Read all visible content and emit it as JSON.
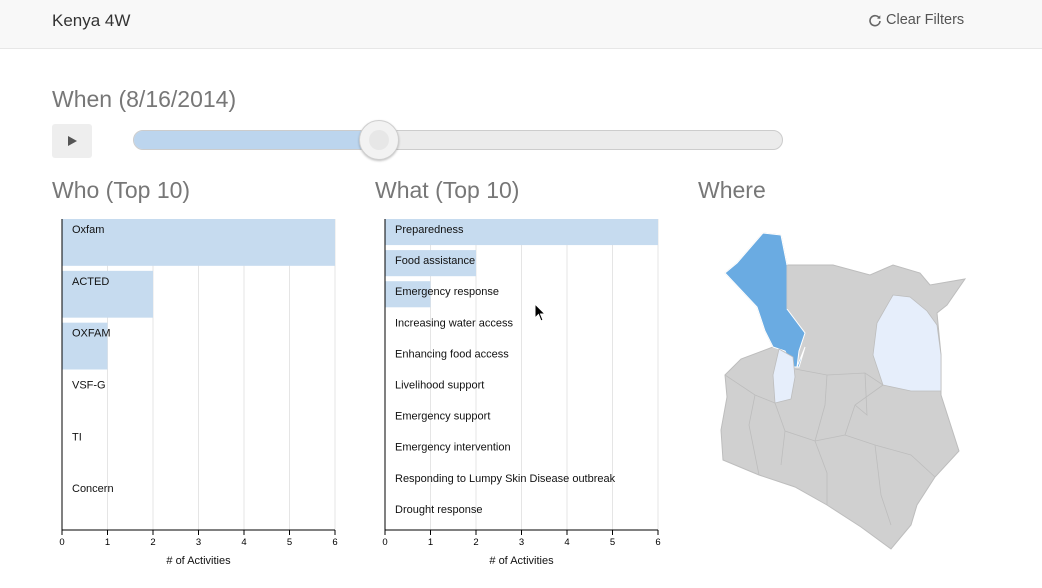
{
  "navbar": {
    "brand": "Kenya 4W",
    "clear_filters_label": "Clear Filters"
  },
  "when": {
    "title": "When (8/16/2014)",
    "slider_fraction": 0.38
  },
  "who": {
    "title": "Who (Top 10)",
    "chart_data": {
      "type": "bar",
      "orientation": "horizontal",
      "categories": [
        "Oxfam",
        "ACTED",
        "OXFAM",
        "VSF-G",
        "TI",
        "Concern"
      ],
      "values": [
        6,
        2,
        1,
        0,
        0,
        0
      ],
      "xlabel": "# of Activities",
      "xlim": [
        0,
        6
      ],
      "xticks": [
        "0",
        "1",
        "2",
        "3",
        "4",
        "5",
        "6"
      ],
      "grid": true,
      "bar_color": "#c6dbef"
    }
  },
  "what": {
    "title": "What (Top 10)",
    "chart_data": {
      "type": "bar",
      "orientation": "horizontal",
      "categories": [
        "Preparedness",
        "Food assistance",
        "Emergency response",
        "Increasing water access",
        "Enhancing food access",
        "Livelihood support",
        "Emergency support",
        "Emergency intervention",
        "Responding to Lumpy Skin Disease outbreak",
        "Drought response"
      ],
      "values": [
        6,
        2,
        1,
        0,
        0,
        0,
        0,
        0,
        0,
        0
      ],
      "xlabel": "# of Activities",
      "xlim": [
        0,
        6
      ],
      "xticks": [
        "0",
        "1",
        "2",
        "3",
        "4",
        "5",
        "6"
      ],
      "grid": true,
      "bar_color": "#c6dbef"
    }
  },
  "where": {
    "title": "Where",
    "colors": {
      "selected": "#6aabe2",
      "light": "#e6eefb",
      "default": "#d0d0d0",
      "border": "#bdbdbd"
    }
  }
}
